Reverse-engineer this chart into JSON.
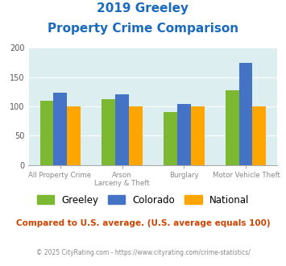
{
  "title_line1": "2019 Greeley",
  "title_line2": "Property Crime Comparison",
  "greeley": [
    110,
    113,
    91,
    127
  ],
  "colorado": [
    123,
    120,
    104,
    175
  ],
  "national": [
    100,
    100,
    100,
    100
  ],
  "greeley_color": "#7cb832",
  "colorado_color": "#4472c4",
  "national_color": "#ffa500",
  "bg_color": "#ddeef0",
  "ylim": [
    0,
    200
  ],
  "yticks": [
    0,
    50,
    100,
    150,
    200
  ],
  "legend_labels": [
    "Greeley",
    "Colorado",
    "National"
  ],
  "bottom_labels": [
    "All Property Crime",
    "Arson",
    "Burglary",
    "Motor Vehicle Theft"
  ],
  "top_labels": [
    "",
    "Larceny & Theft",
    "",
    ""
  ],
  "footer_text": "Compared to U.S. average. (U.S. average equals 100)",
  "copyright_text": "© 2025 CityRating.com - https://www.cityrating.com/crime-statistics/",
  "title_color": "#1a6abf",
  "footer_color": "#cc4400",
  "copyright_color": "#888888"
}
